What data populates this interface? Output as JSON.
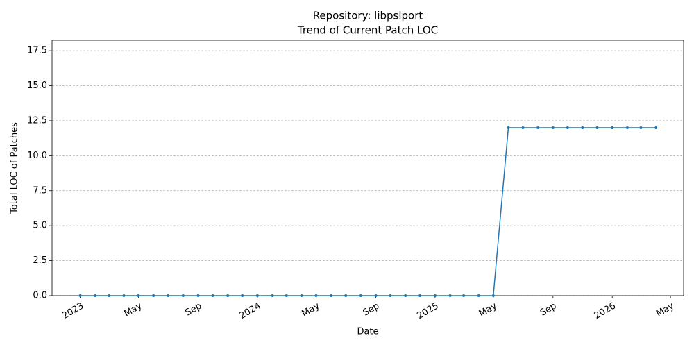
{
  "chart_data": {
    "type": "line",
    "title": "Repository: libpslport",
    "subtitle": "Trend of Current Patch LOC",
    "x_label": "Date",
    "y_label": "Total LOC of Patches",
    "x": [
      "2023-01",
      "2023-02",
      "2023-03",
      "2023-04",
      "2023-05",
      "2023-06",
      "2023-07",
      "2023-08",
      "2023-09",
      "2023-10",
      "2023-11",
      "2023-12",
      "2024-01",
      "2024-02",
      "2024-03",
      "2024-04",
      "2024-05",
      "2024-06",
      "2024-07",
      "2024-08",
      "2024-09",
      "2024-10",
      "2024-11",
      "2024-12",
      "2025-01",
      "2025-02",
      "2025-03",
      "2025-04",
      "2025-05",
      "2025-06",
      "2025-07",
      "2025-08",
      "2025-09",
      "2025-10",
      "2025-11",
      "2025-12",
      "2026-01",
      "2026-02",
      "2026-03",
      "2026-04"
    ],
    "series": [
      {
        "name": "Total LOC of Patches",
        "color": "#1f77b4",
        "values": [
          0,
          0,
          0,
          0,
          0,
          0,
          0,
          0,
          0,
          0,
          0,
          0,
          0,
          0,
          0,
          0,
          0,
          0,
          0,
          0,
          0,
          0,
          0,
          0,
          0,
          0,
          0,
          0,
          0,
          12,
          12,
          12,
          12,
          12,
          12,
          12,
          12,
          12,
          12,
          12
        ]
      }
    ],
    "xlim": [
      "2022-11-04",
      "2026-05-28"
    ],
    "xticks": [
      {
        "value": "2023-01",
        "label": "2023"
      },
      {
        "value": "2023-05",
        "label": "May"
      },
      {
        "value": "2023-09",
        "label": "Sep"
      },
      {
        "value": "2024-01",
        "label": "2024"
      },
      {
        "value": "2024-05",
        "label": "May"
      },
      {
        "value": "2024-09",
        "label": "Sep"
      },
      {
        "value": "2025-01",
        "label": "2025"
      },
      {
        "value": "2025-05",
        "label": "May"
      },
      {
        "value": "2025-09",
        "label": "Sep"
      },
      {
        "value": "2026-01",
        "label": "2026"
      },
      {
        "value": "2026-05",
        "label": "May"
      }
    ],
    "ylim": [
      0,
      18.25
    ],
    "yticks": [
      {
        "value": 0,
        "label": "0.0"
      },
      2.5,
      {
        "value": 5,
        "label": "5.0"
      },
      7.5,
      {
        "value": 10,
        "label": "10.0"
      },
      12.5,
      {
        "value": 15,
        "label": "15.0"
      },
      17.5
    ],
    "grid": true
  }
}
